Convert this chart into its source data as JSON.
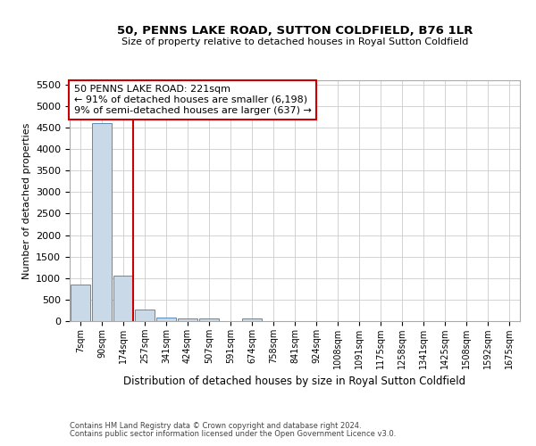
{
  "title": "50, PENNS LAKE ROAD, SUTTON COLDFIELD, B76 1LR",
  "subtitle": "Size of property relative to detached houses in Royal Sutton Coldfield",
  "xlabel": "Distribution of detached houses by size in Royal Sutton Coldfield",
  "ylabel": "Number of detached properties",
  "footnote1": "Contains HM Land Registry data © Crown copyright and database right 2024.",
  "footnote2": "Contains public sector information licensed under the Open Government Licence v3.0.",
  "annotation_title": "50 PENNS LAKE ROAD: 221sqm",
  "annotation_line1": "← 91% of detached houses are smaller (6,198)",
  "annotation_line2": "9% of semi-detached houses are larger (637) →",
  "bar_color": "#c9d9e8",
  "bar_edge_color": "#5a8ab5",
  "vline_color": "#cc0000",
  "annotation_box_color": "#cc0000",
  "categories": [
    "7sqm",
    "90sqm",
    "174sqm",
    "257sqm",
    "341sqm",
    "424sqm",
    "507sqm",
    "591sqm",
    "674sqm",
    "758sqm",
    "841sqm",
    "924sqm",
    "1008sqm",
    "1091sqm",
    "1175sqm",
    "1258sqm",
    "1341sqm",
    "1425sqm",
    "1508sqm",
    "1592sqm",
    "1675sqm"
  ],
  "values": [
    850,
    4600,
    1060,
    270,
    90,
    70,
    60,
    0,
    55,
    0,
    0,
    0,
    0,
    0,
    0,
    0,
    0,
    0,
    0,
    0,
    0
  ],
  "ylim": [
    0,
    5600
  ],
  "yticks": [
    0,
    500,
    1000,
    1500,
    2000,
    2500,
    3000,
    3500,
    4000,
    4500,
    5000,
    5500
  ],
  "vline_x_index": 2.45,
  "bg_color": "#ffffff",
  "grid_color": "#cccccc",
  "figwidth": 6.0,
  "figheight": 5.0,
  "dpi": 100
}
